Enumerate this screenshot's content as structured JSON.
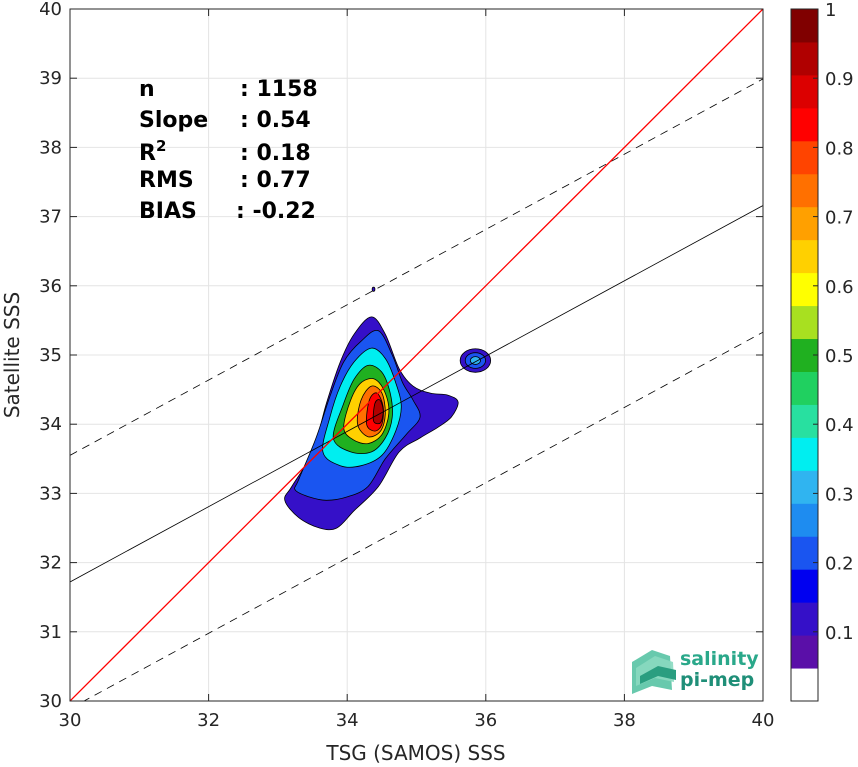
{
  "chart_data": {
    "type": "heatmap",
    "subtype": "density-contour-scatter",
    "xlabel": "TSG (SAMOS) SSS",
    "ylabel": "Satellite SSS",
    "xlim": [
      30,
      40
    ],
    "ylim": [
      30,
      40
    ],
    "xticks": [
      "30",
      "32",
      "34",
      "36",
      "38",
      "40"
    ],
    "yticks": [
      "30",
      "31",
      "32",
      "33",
      "34",
      "35",
      "36",
      "37",
      "38",
      "39",
      "40"
    ],
    "grid": true,
    "reference_lines": {
      "one_to_one": {
        "color": "#ff0000",
        "points": [
          [
            30,
            30
          ],
          [
            40,
            40
          ]
        ]
      },
      "regression": {
        "color": "#000000",
        "points": [
          [
            30,
            31.72
          ],
          [
            40,
            37.16
          ]
        ]
      },
      "upper_dashed": {
        "color": "#000000",
        "points": [
          [
            30,
            33.55
          ],
          [
            40,
            38.99
          ]
        ]
      },
      "lower_dashed": {
        "color": "#000000",
        "points": [
          [
            30,
            29.89
          ],
          [
            40,
            35.33
          ]
        ]
      }
    },
    "stats": [
      {
        "label": "n",
        "value": ": 1158"
      },
      {
        "label": "Slope",
        "value": ": 0.54"
      },
      {
        "label": "R",
        "sup": "2",
        "value": ": 0.18"
      },
      {
        "label": "RMS",
        "value": ": 0.77"
      },
      {
        "label": "BIAS",
        "value": ": -0.22"
      }
    ],
    "colorbar": {
      "ticks": [
        "0.1",
        "0.2",
        "0.3",
        "0.4",
        "0.5",
        "0.6",
        "0.7",
        "0.8",
        "0.9",
        "1"
      ],
      "range": [
        0,
        1
      ],
      "bands": [
        "#ffffff",
        "#5a0fa8",
        "#3510c8",
        "#0000f0",
        "#1a55f0",
        "#1e8cf0",
        "#30b4f0",
        "#00eef0",
        "#28e0a0",
        "#20d060",
        "#20b020",
        "#a8e020",
        "#ffff00",
        "#ffd000",
        "#ffa000",
        "#ff7000",
        "#ff4400",
        "#ff0000",
        "#dc0000",
        "#b00000",
        "#800000"
      ]
    },
    "contour_levels": [
      {
        "level": 0.05,
        "points": [
          [
            33.2,
            33.1
          ],
          [
            33.5,
            33.6
          ],
          [
            33.7,
            34.3
          ],
          [
            33.9,
            34.9
          ],
          [
            34.1,
            35.3
          ],
          [
            34.35,
            35.55
          ],
          [
            34.55,
            35.3
          ],
          [
            34.75,
            34.8
          ],
          [
            34.95,
            34.55
          ],
          [
            35.2,
            34.45
          ],
          [
            35.45,
            34.42
          ],
          [
            35.6,
            34.32
          ],
          [
            35.5,
            34.1
          ],
          [
            35.3,
            33.95
          ],
          [
            35.05,
            33.8
          ],
          [
            34.75,
            33.6
          ],
          [
            34.45,
            33.1
          ],
          [
            34.1,
            32.75
          ],
          [
            33.85,
            32.5
          ],
          [
            33.6,
            32.5
          ],
          [
            33.3,
            32.65
          ],
          [
            33.1,
            32.9
          ]
        ]
      },
      {
        "level": 0.15,
        "points": [
          [
            33.3,
            33.2
          ],
          [
            33.55,
            33.8
          ],
          [
            33.75,
            34.4
          ],
          [
            33.95,
            34.9
          ],
          [
            34.2,
            35.2
          ],
          [
            34.45,
            35.35
          ],
          [
            34.65,
            35.0
          ],
          [
            34.8,
            34.6
          ],
          [
            34.95,
            34.35
          ],
          [
            35.05,
            34.1
          ],
          [
            34.85,
            33.85
          ],
          [
            34.55,
            33.5
          ],
          [
            34.3,
            33.1
          ],
          [
            34.0,
            32.95
          ],
          [
            33.7,
            32.9
          ],
          [
            33.45,
            32.95
          ],
          [
            33.25,
            33.05
          ]
        ]
      },
      {
        "level": 0.3,
        "points": [
          [
            33.65,
            33.6
          ],
          [
            33.75,
            34.1
          ],
          [
            33.9,
            34.55
          ],
          [
            34.1,
            34.9
          ],
          [
            34.35,
            35.1
          ],
          [
            34.55,
            34.95
          ],
          [
            34.7,
            34.6
          ],
          [
            34.78,
            34.25
          ],
          [
            34.7,
            33.9
          ],
          [
            34.5,
            33.55
          ],
          [
            34.2,
            33.4
          ],
          [
            33.9,
            33.4
          ]
        ]
      },
      {
        "level": 0.45,
        "points": [
          [
            33.8,
            33.8
          ],
          [
            33.95,
            34.3
          ],
          [
            34.1,
            34.65
          ],
          [
            34.3,
            34.85
          ],
          [
            34.5,
            34.75
          ],
          [
            34.62,
            34.45
          ],
          [
            34.65,
            34.1
          ],
          [
            34.55,
            33.8
          ],
          [
            34.35,
            33.6
          ],
          [
            34.05,
            33.6
          ]
        ]
      },
      {
        "level": 0.6,
        "points": [
          [
            33.95,
            33.95
          ],
          [
            34.05,
            34.35
          ],
          [
            34.2,
            34.6
          ],
          [
            34.4,
            34.65
          ],
          [
            34.55,
            34.45
          ],
          [
            34.6,
            34.15
          ],
          [
            34.5,
            33.85
          ],
          [
            34.3,
            33.72
          ],
          [
            34.08,
            33.78
          ]
        ]
      },
      {
        "level": 0.7,
        "points": [
          [
            34.15,
            34.0
          ],
          [
            34.2,
            34.35
          ],
          [
            34.35,
            34.55
          ],
          [
            34.5,
            34.45
          ],
          [
            34.55,
            34.15
          ],
          [
            34.48,
            33.9
          ],
          [
            34.3,
            33.82
          ]
        ]
      },
      {
        "level": 0.8,
        "points": [
          [
            34.28,
            34.0
          ],
          [
            34.32,
            34.35
          ],
          [
            34.43,
            34.45
          ],
          [
            34.52,
            34.25
          ],
          [
            34.5,
            34.0
          ],
          [
            34.4,
            33.9
          ]
        ]
      },
      {
        "level": 0.9,
        "points": [
          [
            34.38,
            34.05
          ],
          [
            34.4,
            34.3
          ],
          [
            34.47,
            34.35
          ],
          [
            34.52,
            34.2
          ],
          [
            34.48,
            34.02
          ]
        ]
      }
    ],
    "secondary_blobs": [
      {
        "center": [
          35.85,
          34.92
        ],
        "radius": [
          0.22,
          0.17
        ],
        "levels": [
          0.05,
          0.15,
          0.25
        ]
      },
      {
        "center": [
          34.38,
          35.95
        ],
        "radius": [
          0.02,
          0.03
        ],
        "levels": [
          0.05
        ]
      }
    ]
  },
  "logo": {
    "line1": "salinity",
    "line2": "pi-mep"
  }
}
